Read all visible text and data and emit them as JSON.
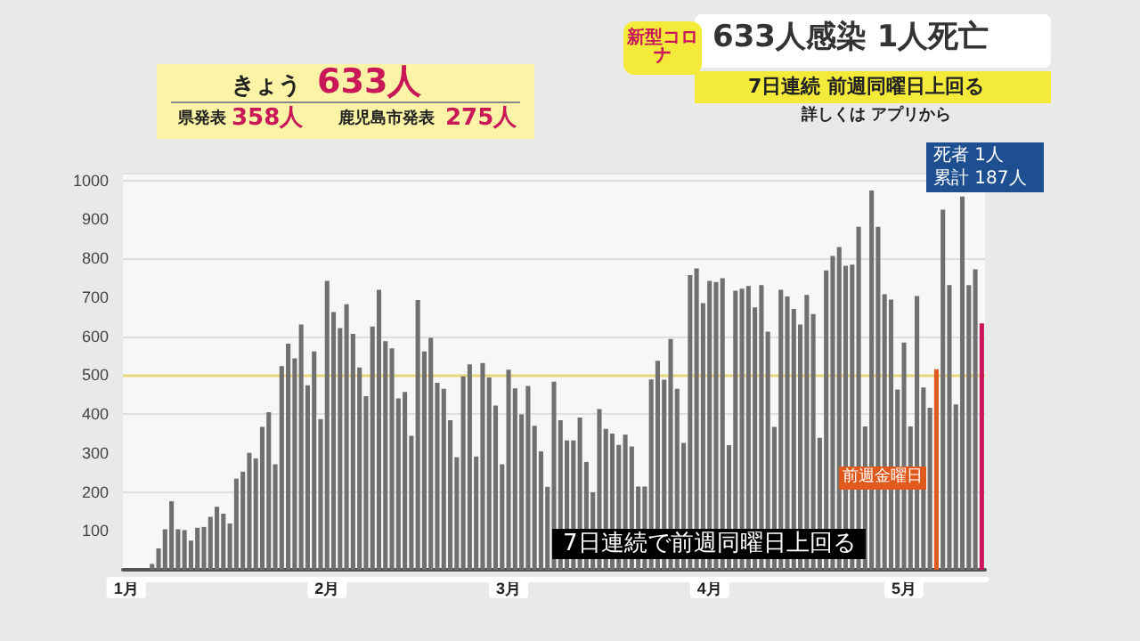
{
  "chart_data": {
    "type": "bar",
    "title": "633人感染 1人死亡",
    "subtitle": "7日連続 前週同曜日上回る",
    "annotations": [
      "きょう",
      "633人",
      "県発表",
      "358人",
      "鹿児島市発表",
      "275人",
      "新型コロナ",
      "詳しくは アプリから",
      "死者 1人",
      "累計 187人",
      "前週金曜日",
      "7日連続で前週同曜日上回る"
    ],
    "categories": [
      "1月",
      null,
      null,
      null,
      null,
      null,
      null,
      null,
      null,
      null,
      null,
      null,
      null,
      null,
      null,
      null,
      null,
      null,
      null,
      null,
      null,
      null,
      null,
      null,
      null,
      null,
      null,
      null,
      null,
      null,
      null,
      "2月",
      null,
      null,
      null,
      null,
      null,
      null,
      null,
      null,
      null,
      null,
      null,
      null,
      null,
      null,
      null,
      null,
      null,
      null,
      null,
      null,
      null,
      null,
      null,
      null,
      null,
      null,
      null,
      "3月",
      null,
      null,
      null,
      null,
      null,
      null,
      null,
      null,
      null,
      null,
      null,
      null,
      null,
      null,
      null,
      null,
      null,
      null,
      null,
      null,
      null,
      null,
      null,
      null,
      null,
      null,
      null,
      null,
      null,
      null,
      "4月",
      null,
      null,
      null,
      null,
      null,
      null,
      null,
      null,
      null,
      null,
      null,
      null,
      null,
      null,
      null,
      null,
      null,
      null,
      null,
      null,
      null,
      null,
      null,
      null,
      null,
      null,
      null,
      null,
      null,
      "5月",
      null,
      null,
      null,
      null,
      null,
      null,
      null,
      null,
      null,
      null,
      null,
      null
    ],
    "values": [
      0,
      0,
      0,
      0,
      15,
      55,
      104,
      176,
      104,
      102,
      75,
      108,
      110,
      136,
      162,
      144,
      119,
      234,
      252,
      300,
      286,
      367,
      405,
      271,
      523,
      581,
      543,
      630,
      474,
      561,
      387,
      742,
      662,
      621,
      682,
      606,
      520,
      446,
      625,
      719,
      587,
      569,
      440,
      457,
      344,
      693,
      561,
      596,
      480,
      465,
      384,
      289,
      497,
      528,
      291,
      531,
      494,
      422,
      271,
      514,
      466,
      399,
      472,
      370,
      304,
      213,
      483,
      384,
      332,
      332,
      391,
      277,
      199,
      413,
      362,
      350,
      321,
      347,
      317,
      214,
      214,
      489,
      537,
      488,
      593,
      465,
      326,
      757,
      774,
      685,
      742,
      739,
      749,
      320,
      717,
      722,
      729,
      674,
      731,
      612,
      367,
      719,
      702,
      670,
      630,
      706,
      657,
      339,
      769,
      806,
      829,
      781,
      784,
      881,
      368,
      974,
      881,
      708,
      694,
      463,
      584,
      368,
      703,
      468,
      416,
      515,
      925,
      731,
      425,
      959,
      731,
      772,
      633
    ],
    "colors": [
      "#707070",
      "#707070",
      "#707070",
      "#707070",
      "#707070",
      "#707070",
      "#707070",
      "#707070",
      "#707070",
      "#707070",
      "#707070",
      "#707070",
      "#707070",
      "#707070",
      "#707070",
      "#707070",
      "#707070",
      "#707070",
      "#707070",
      "#707070",
      "#707070",
      "#707070",
      "#707070",
      "#707070",
      "#707070",
      "#707070",
      "#707070",
      "#707070",
      "#707070",
      "#707070",
      "#707070",
      "#707070",
      "#707070",
      "#707070",
      "#707070",
      "#707070",
      "#707070",
      "#707070",
      "#707070",
      "#707070",
      "#707070",
      "#707070",
      "#707070",
      "#707070",
      "#707070",
      "#707070",
      "#707070",
      "#707070",
      "#707070",
      "#707070",
      "#707070",
      "#707070",
      "#707070",
      "#707070",
      "#707070",
      "#707070",
      "#707070",
      "#707070",
      "#707070",
      "#707070",
      "#707070",
      "#707070",
      "#707070",
      "#707070",
      "#707070",
      "#707070",
      "#707070",
      "#707070",
      "#707070",
      "#707070",
      "#707070",
      "#707070",
      "#707070",
      "#707070",
      "#707070",
      "#707070",
      "#707070",
      "#707070",
      "#707070",
      "#707070",
      "#707070",
      "#707070",
      "#707070",
      "#707070",
      "#707070",
      "#707070",
      "#707070",
      "#707070",
      "#707070",
      "#707070",
      "#707070",
      "#707070",
      "#707070",
      "#707070",
      "#707070",
      "#707070",
      "#707070",
      "#707070",
      "#707070",
      "#707070",
      "#707070",
      "#707070",
      "#707070",
      "#707070",
      "#707070",
      "#707070",
      "#707070",
      "#707070",
      "#707070",
      "#707070",
      "#707070",
      "#707070",
      "#707070",
      "#707070",
      "#707070",
      "#707070",
      "#707070",
      "#707070",
      "#707070",
      "#707070",
      "#707070",
      "#707070",
      "#707070",
      "#707070",
      "#707070",
      "#e05a1e",
      "#707070",
      "#707070",
      "#707070",
      "#707070",
      "#707070",
      "#707070",
      "#c8185a"
    ],
    "ylim": [
      0,
      1020
    ],
    "yticks": [
      100,
      200,
      300,
      400,
      500,
      600,
      700,
      800,
      900,
      1000
    ],
    "grid": "y",
    "ref_lines": [
      {
        "axis": "y",
        "value": 500,
        "color": "#e6d77a"
      }
    ]
  }
}
